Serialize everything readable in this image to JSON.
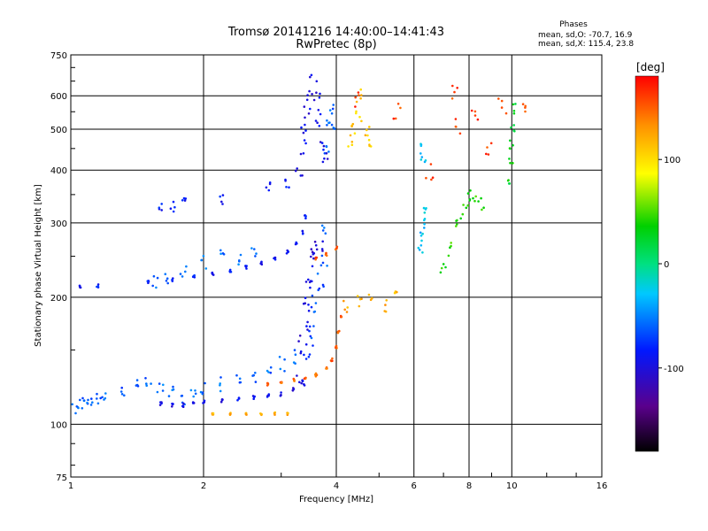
{
  "chart_data": {
    "type": "scatter",
    "title": "Tromsø 20141216 14:40:00–14:41:43",
    "subtitle": "RwPretec (8p)",
    "xlabel": "Frequency [MHz]",
    "ylabel": "Stationary phase Virtual Height [km]",
    "x_scale": "log",
    "y_scale": "log",
    "xlim": [
      1,
      16
    ],
    "ylim": [
      75,
      750
    ],
    "x_ticks": [
      1,
      2,
      4,
      6,
      8,
      10,
      16
    ],
    "y_ticks": [
      75,
      100,
      200,
      300,
      400,
      500,
      600,
      750
    ],
    "grid": true,
    "phases": {
      "heading": "Phases",
      "line1": "mean, sd,O: -70.7, 16.9",
      "line2": "mean, sd,X: 115.4, 23.8"
    },
    "colorbar": {
      "label": "[deg]",
      "range": [
        -180,
        180
      ],
      "ticks": [
        100,
        0,
        -100
      ],
      "colors": [
        "#000000",
        "#5a008c",
        "#0018ff",
        "#00c8ff",
        "#00e080",
        "#00d000",
        "#ffff00",
        "#ff9000",
        "#ff0000"
      ]
    },
    "series": [
      {
        "values": [
          {
            "points": [
              [
                1.02,
                108
              ],
              [
                1.05,
                112
              ],
              [
                1.08,
                115
              ],
              [
                1.1,
                113
              ],
              [
                1.15,
                116
              ],
              [
                1.2,
                118
              ],
              [
                1.3,
                120
              ],
              [
                1.4,
                122
              ],
              [
                1.5,
                124
              ],
              [
                1.6,
                121
              ],
              [
                1.7,
                119
              ],
              [
                1.8,
                115
              ],
              [
                1.9,
                120
              ],
              [
                2.0,
                123
              ],
              [
                2.2,
                124
              ],
              [
                2.4,
                128
              ],
              [
                2.6,
                131
              ],
              [
                2.8,
                135
              ],
              [
                3.0,
                139
              ],
              [
                3.2,
                145
              ]
            ],
            "phase": -60,
            "spread": 0.06
          },
          {
            "points": [
              [
                1.6,
                112
              ],
              [
                1.7,
                111
              ],
              [
                1.8,
                111
              ],
              [
                1.9,
                112
              ],
              [
                2.0,
                113
              ],
              [
                2.2,
                114
              ],
              [
                2.4,
                115
              ],
              [
                2.6,
                116
              ],
              [
                2.8,
                117
              ],
              [
                3.0,
                118
              ],
              [
                3.2,
                121
              ],
              [
                3.35,
                126
              ]
            ],
            "phase": -95,
            "spread": 0.015
          },
          {
            "points": [
              [
                1.05,
                213
              ],
              [
                1.15,
                213
              ],
              [
                1.5,
                218
              ],
              [
                1.7,
                220
              ],
              [
                1.9,
                223
              ],
              [
                2.1,
                227
              ],
              [
                2.3,
                231
              ],
              [
                2.5,
                235
              ],
              [
                2.7,
                241
              ],
              [
                2.9,
                248
              ],
              [
                3.1,
                256
              ],
              [
                3.25,
                268
              ],
              [
                3.35,
                285
              ],
              [
                3.4,
                310
              ]
            ],
            "phase": -85,
            "spread": 0.015
          },
          {
            "points": [
              [
                1.55,
                218
              ],
              [
                1.65,
                220
              ],
              [
                1.8,
                230
              ],
              [
                2.0,
                242
              ],
              [
                2.2,
                250
              ],
              [
                2.4,
                245
              ],
              [
                2.6,
                258
              ]
            ],
            "phase": -60,
            "spread": 0.05
          },
          {
            "points": [
              [
                3.32,
                130
              ],
              [
                3.35,
                150
              ],
              [
                3.38,
                170
              ],
              [
                3.42,
                190
              ],
              [
                3.45,
                210
              ],
              [
                3.5,
                230
              ],
              [
                3.55,
                250
              ],
              [
                3.6,
                260
              ],
              [
                3.65,
                270
              ]
            ],
            "phase": -100,
            "spread": 0.08
          },
          {
            "points": [
              [
                3.45,
                140
              ],
              [
                3.5,
                160
              ],
              [
                3.55,
                180
              ],
              [
                3.6,
                200
              ],
              [
                3.7,
                220
              ],
              [
                3.75,
                240
              ],
              [
                3.8,
                290
              ]
            ],
            "phase": -65,
            "spread": 0.08
          },
          {
            "points": [
              [
                3.3,
                400
              ],
              [
                3.35,
                450
              ],
              [
                3.4,
                500
              ],
              [
                3.45,
                550
              ],
              [
                3.5,
                600
              ],
              [
                3.55,
                640
              ],
              [
                3.6,
                580
              ],
              [
                3.65,
                520
              ],
              [
                3.7,
                460
              ],
              [
                3.75,
                420
              ]
            ],
            "phase": -95,
            "spread": 0.07
          },
          {
            "points": [
              [
                3.8,
                450
              ],
              [
                3.85,
                520
              ],
              [
                3.9,
                560
              ],
              [
                3.95,
                500
              ]
            ],
            "phase": -60,
            "spread": 0.04
          },
          {
            "points": [
              [
                2.8,
                124
              ],
              [
                3.0,
                126
              ],
              [
                3.2,
                127
              ],
              [
                3.4,
                129
              ],
              [
                3.6,
                131
              ],
              [
                3.8,
                135
              ],
              [
                3.9,
                142
              ],
              [
                4.0,
                152
              ],
              [
                4.05,
                165
              ],
              [
                4.1,
                180
              ]
            ],
            "phase": 150,
            "spread": 0.015
          },
          {
            "points": [
              [
                3.6,
                246
              ],
              [
                3.8,
                252
              ],
              [
                4.0,
                262
              ]
            ],
            "phase": 155,
            "spread": 0.015
          },
          {
            "points": [
              [
                2.1,
                106
              ],
              [
                2.3,
                106
              ],
              [
                2.5,
                106
              ],
              [
                2.7,
                106
              ],
              [
                2.9,
                106
              ],
              [
                3.1,
                106
              ]
            ],
            "phase": 120,
            "spread": 0.01
          },
          {
            "points": [
              [
                4.3,
                470
              ],
              [
                4.4,
                500
              ],
              [
                4.5,
                540
              ],
              [
                4.7,
                500
              ],
              [
                4.8,
                460
              ],
              [
                4.5,
                600
              ]
            ],
            "phase": 110,
            "spread": 0.05
          },
          {
            "points": [
              [
                4.2,
                190
              ],
              [
                4.5,
                195
              ],
              [
                4.8,
                200
              ],
              [
                5.2,
                190
              ],
              [
                5.5,
                200
              ]
            ],
            "phase": 120,
            "spread": 0.05
          },
          {
            "points": [
              [
                6.2,
                260
              ],
              [
                6.25,
                280
              ],
              [
                6.3,
                300
              ],
              [
                6.35,
                320
              ],
              [
                6.3,
                420
              ],
              [
                6.25,
                450
              ]
            ],
            "phase": -30,
            "spread": 0.04
          },
          {
            "points": [
              [
                7.0,
                230
              ],
              [
                7.2,
                260
              ],
              [
                7.5,
                300
              ],
              [
                7.8,
                320
              ],
              [
                8.0,
                340
              ],
              [
                8.2,
                350
              ],
              [
                8.5,
                330
              ]
            ],
            "phase": 40,
            "spread": 0.06
          },
          {
            "points": [
              [
                9.9,
                380
              ],
              [
                9.95,
                420
              ],
              [
                10.0,
                460
              ],
              [
                10.05,
                500
              ],
              [
                10.1,
                560
              ]
            ],
            "phase": 30,
            "spread": 0.04
          },
          {
            "points": [
              [
                1.6,
                330
              ],
              [
                1.7,
                328
              ],
              [
                1.8,
                340
              ],
              [
                2.2,
                340
              ],
              [
                2.8,
                365
              ],
              [
                3.1,
                372
              ]
            ],
            "phase": -85,
            "spread": 0.04
          },
          {
            "points": [
              [
                4.5,
                580
              ],
              [
                5.5,
                560
              ],
              [
                7.5,
                515
              ],
              [
                8.2,
                525
              ],
              [
                9.5,
                570
              ],
              [
                10.5,
                560
              ],
              [
                6.5,
                400
              ],
              [
                8.8,
                460
              ],
              [
                7.5,
                600
              ]
            ],
            "phase": 160,
            "spread": 0.08
          }
        ]
      }
    ]
  }
}
